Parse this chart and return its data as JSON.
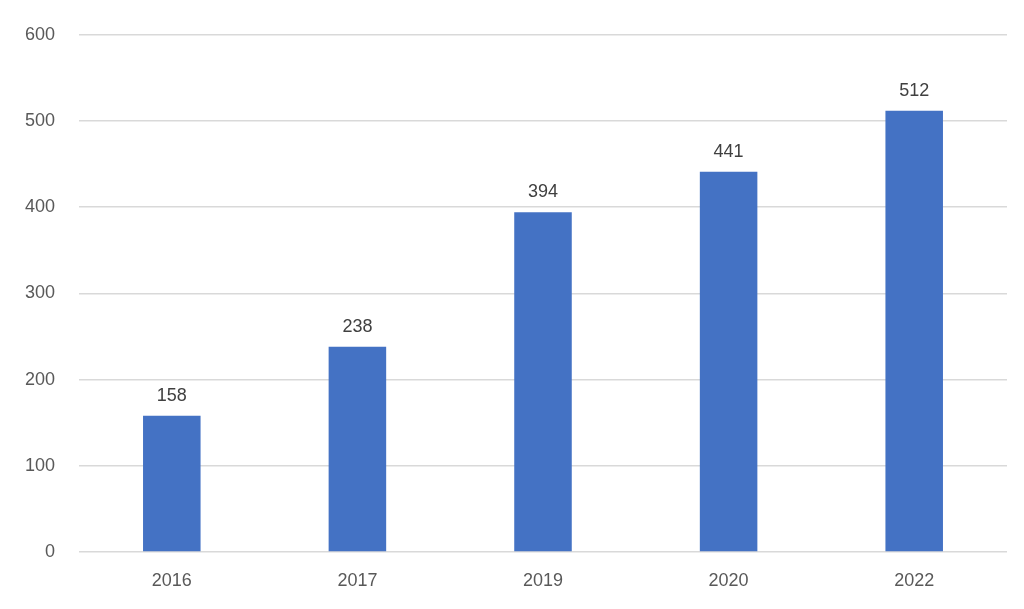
{
  "chart_data": {
    "type": "bar",
    "categories": [
      "2016",
      "2017",
      "2019",
      "2020",
      "2022"
    ],
    "values": [
      158,
      238,
      394,
      441,
      512
    ],
    "color": "#4472c4",
    "ylim": [
      0,
      600
    ],
    "yticks": [
      0,
      100,
      200,
      300,
      400,
      500,
      600
    ],
    "grid": "y",
    "data_labels": true
  }
}
